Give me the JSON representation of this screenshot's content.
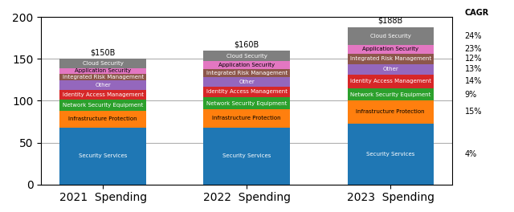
{
  "chart_data": {
    "type": "bar",
    "stacked": true,
    "categories": [
      "2021  Spending",
      "2022  Spending",
      "2023  Spending"
    ],
    "series": [
      {
        "name": "Security Services",
        "values": [
          68,
          68,
          73
        ],
        "cagr": "4%"
      },
      {
        "name": "Infrastructure Protection",
        "values": [
          20,
          22,
          27
        ],
        "cagr": "15%"
      },
      {
        "name": "Network Security Equipment",
        "values": [
          13,
          14,
          15
        ],
        "cagr": "9%"
      },
      {
        "name": "Identity Access Management",
        "values": [
          12,
          13,
          16
        ],
        "cagr": "14%"
      },
      {
        "name": "Other",
        "values": [
          11,
          11,
          13
        ],
        "cagr": "13%"
      },
      {
        "name": "Integrated Risk Management",
        "values": [
          8,
          10,
          12
        ],
        "cagr": "12%"
      },
      {
        "name": "Application Security",
        "values": [
          7,
          9,
          11
        ],
        "cagr": "23%"
      },
      {
        "name": "Cloud Security",
        "values": [
          11,
          13,
          21
        ],
        "cagr": "24%"
      }
    ],
    "totals": [
      {
        "value": 150,
        "label": "$150B"
      },
      {
        "value": 160,
        "label": "$160B"
      },
      {
        "value": 188,
        "label": "$188B"
      }
    ],
    "cagr_title": "CAGR",
    "ylim": [
      0,
      200
    ],
    "yticks": [
      0,
      50,
      100,
      150,
      200
    ],
    "grid": true
  }
}
